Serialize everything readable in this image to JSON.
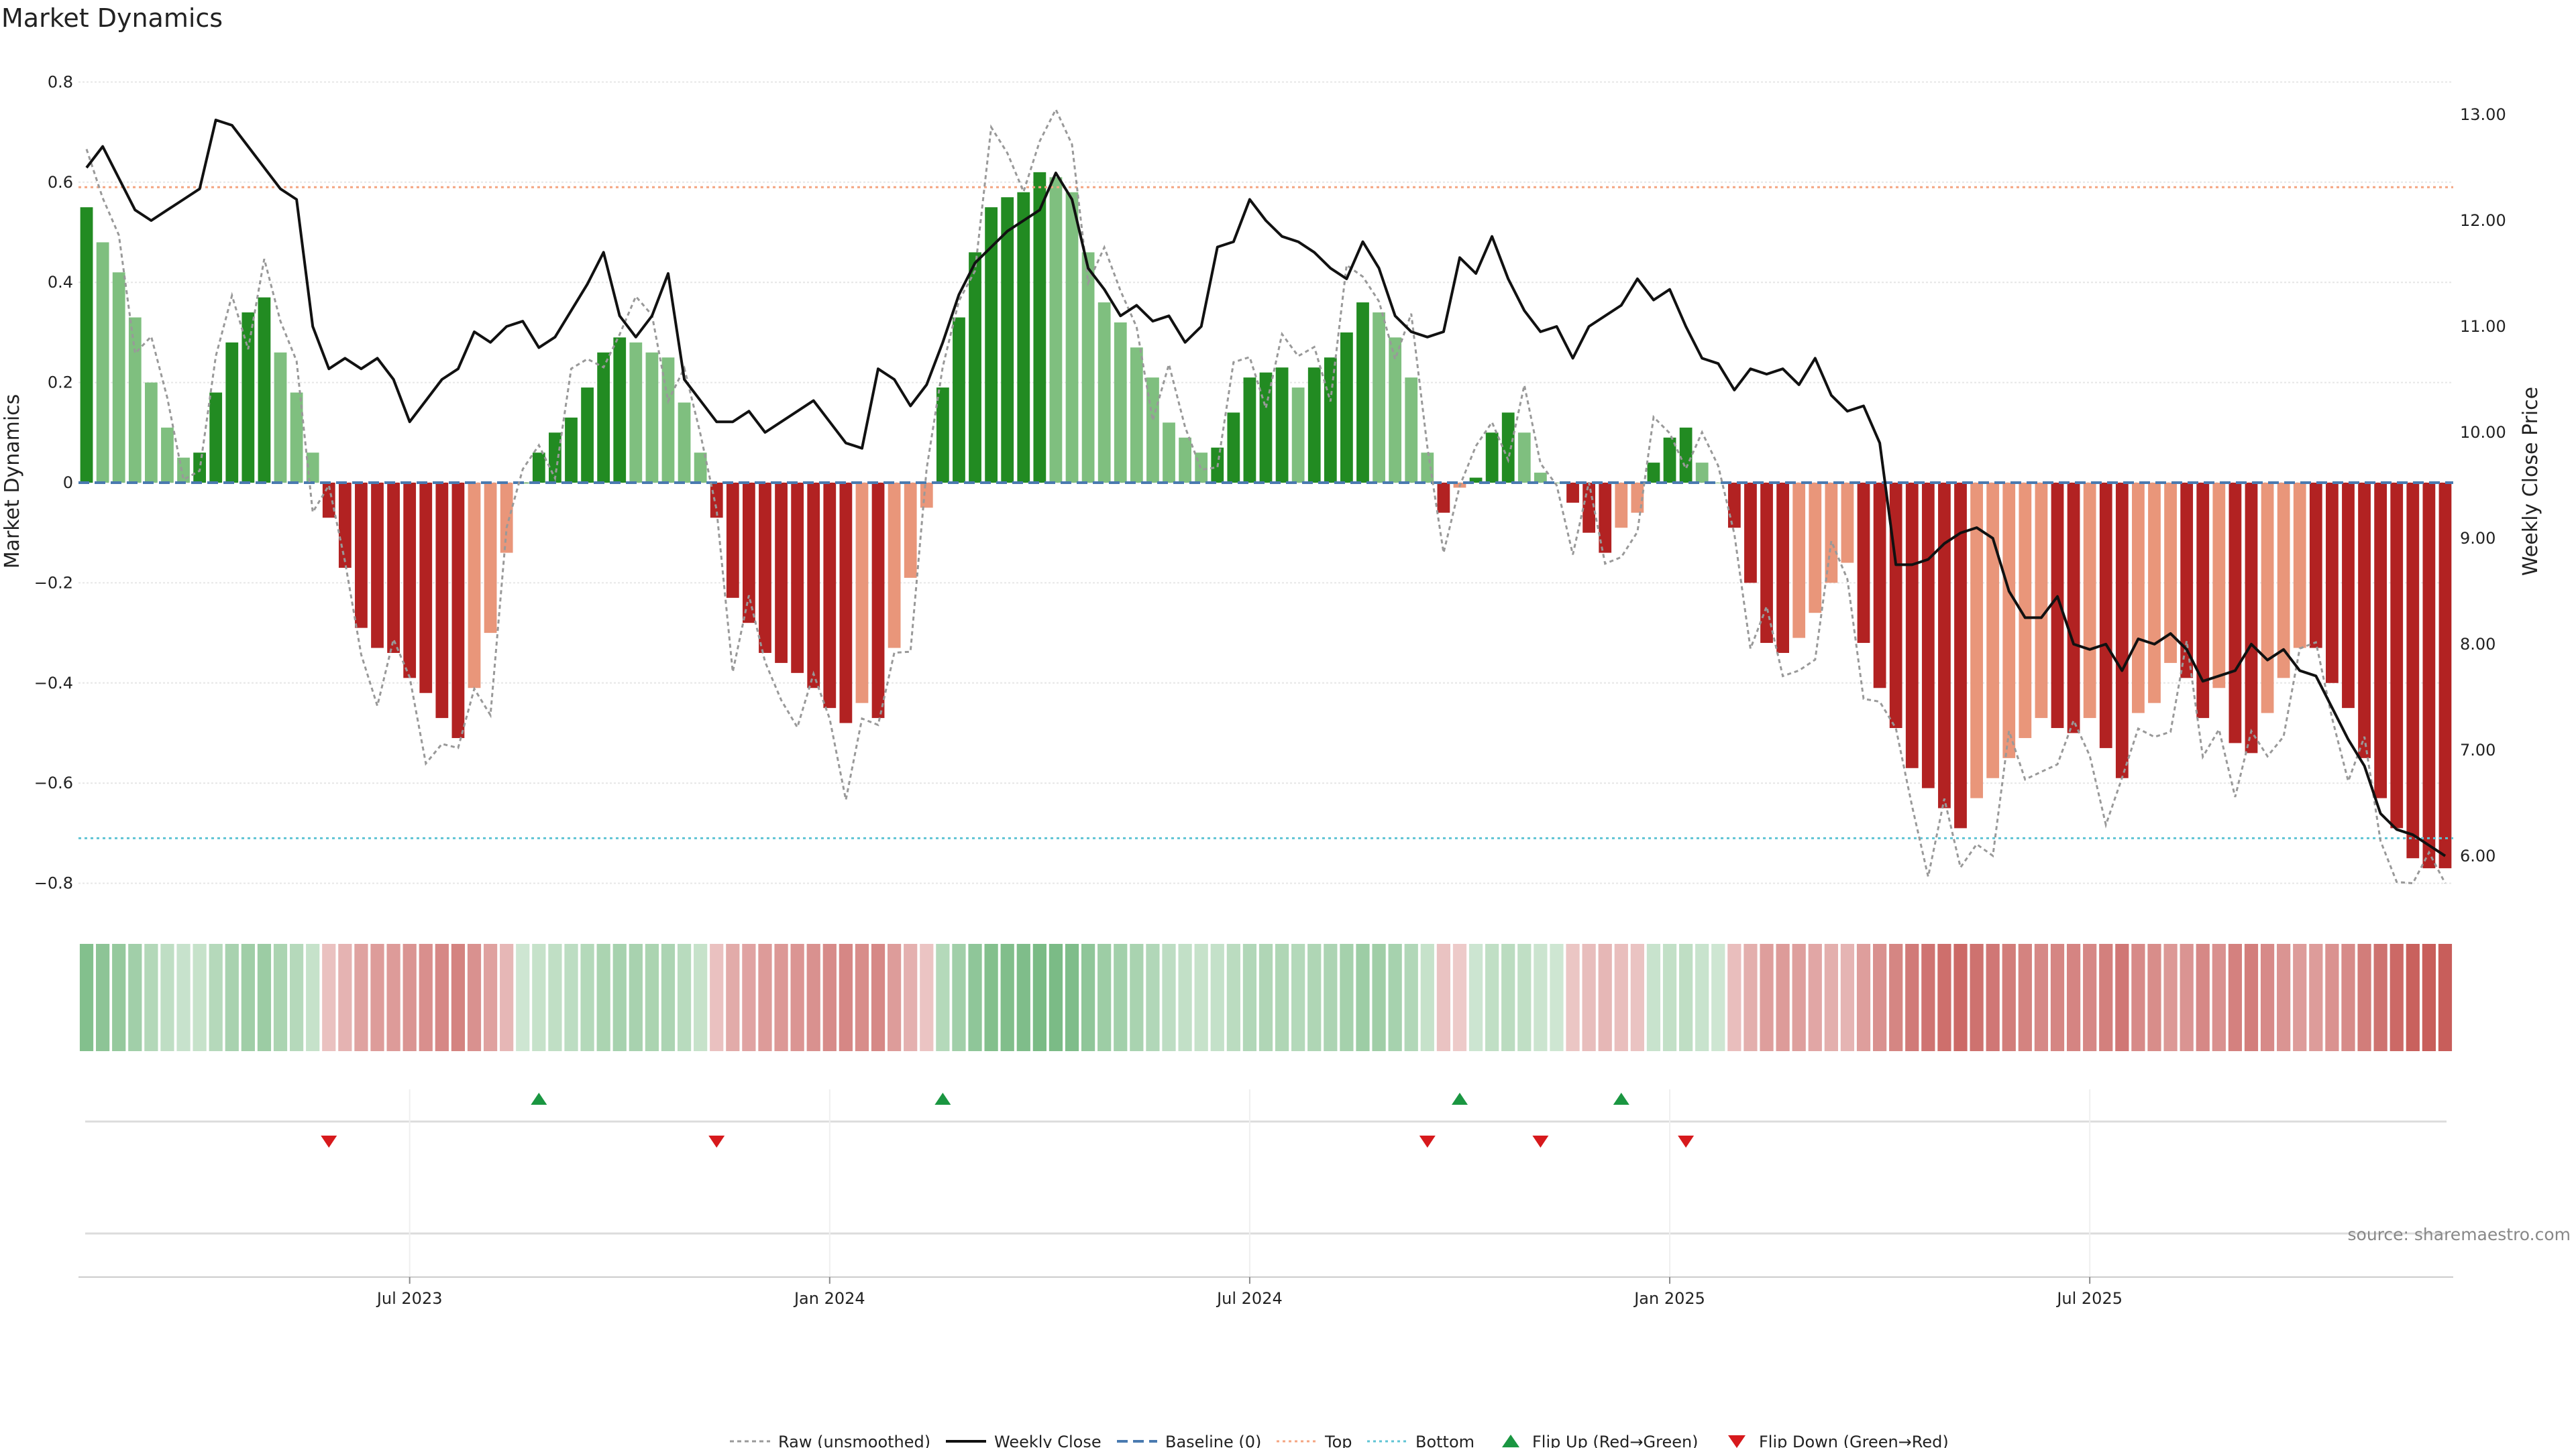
{
  "colors": {
    "strong_green": "#228b22",
    "light_green": "#7fbf7f",
    "strong_red": "#b22222",
    "light_red": "#e9967a",
    "close_line": "#111111",
    "raw_line": "#999999",
    "baseline": "#4a7ab0",
    "top": "#f4a582",
    "bottom": "#5fc4d4",
    "flip_up": "#1a9641",
    "flip_down": "#d7191c",
    "source_text": "#888888"
  },
  "chart_data": {
    "type": "bar",
    "title": "Market Dynamics",
    "ylabel": "Market Dynamics",
    "ylabel_right": "Weekly Close Price",
    "ylim": [
      -0.83,
      0.83
    ],
    "ylim_right": [
      5.6,
      13.45
    ],
    "yticks": [
      {
        "v": 0.8,
        "label": "0.8"
      },
      {
        "v": 0.6,
        "label": "0.6"
      },
      {
        "v": 0.4,
        "label": "0.4"
      },
      {
        "v": 0.2,
        "label": "0.2"
      },
      {
        "v": 0,
        "label": "0"
      },
      {
        "v": -0.2,
        "label": "−0.2"
      },
      {
        "v": -0.4,
        "label": "−0.4"
      },
      {
        "v": -0.6,
        "label": "−0.6"
      },
      {
        "v": -0.8,
        "label": "−0.8"
      }
    ],
    "yticks_right": [
      {
        "v": 13,
        "label": "13.00"
      },
      {
        "v": 12,
        "label": "12.00"
      },
      {
        "v": 11,
        "label": "11.00"
      },
      {
        "v": 10,
        "label": "10.00"
      },
      {
        "v": 9,
        "label": "9.00"
      },
      {
        "v": 8,
        "label": "8.00"
      },
      {
        "v": 7,
        "label": "7.00"
      },
      {
        "v": 6,
        "label": "6.00"
      }
    ],
    "x_ticks": [
      {
        "i": 20,
        "label": "Jul 2023"
      },
      {
        "i": 46,
        "label": "Jan 2024"
      },
      {
        "i": 72,
        "label": "Jul 2024"
      },
      {
        "i": 98,
        "label": "Jan 2025"
      },
      {
        "i": 124,
        "label": "Jul 2025"
      }
    ],
    "top_level": 0.59,
    "bottom_level": -0.71,
    "baseline_level": 0,
    "values": [
      0.55,
      0.48,
      0.42,
      0.33,
      0.2,
      0.11,
      0.05,
      0.06,
      0.18,
      0.28,
      0.34,
      0.37,
      0.26,
      0.18,
      0.06,
      -0.07,
      -0.17,
      -0.29,
      -0.33,
      -0.34,
      -0.39,
      -0.42,
      -0.47,
      -0.51,
      -0.41,
      -0.3,
      -0.14,
      0,
      0.06,
      0.1,
      0.13,
      0.19,
      0.26,
      0.29,
      0.28,
      0.26,
      0.25,
      0.16,
      0.06,
      -0.07,
      -0.23,
      -0.28,
      -0.34,
      -0.36,
      -0.38,
      -0.41,
      -0.45,
      -0.48,
      -0.44,
      -0.47,
      -0.33,
      -0.19,
      -0.05,
      0.19,
      0.33,
      0.46,
      0.55,
      0.57,
      0.58,
      0.62,
      0.61,
      0.58,
      0.46,
      0.36,
      0.32,
      0.27,
      0.21,
      0.12,
      0.09,
      0.06,
      0.07,
      0.14,
      0.21,
      0.22,
      0.23,
      0.19,
      0.23,
      0.25,
      0.3,
      0.36,
      0.34,
      0.29,
      0.21,
      0.06,
      -0.06,
      -0.01,
      0.01,
      0.1,
      0.14,
      0.1,
      0.02,
      0,
      -0.04,
      -0.1,
      -0.14,
      -0.09,
      -0.06,
      0.04,
      0.09,
      0.11,
      0.04,
      0,
      -0.09,
      -0.2,
      -0.32,
      -0.34,
      -0.31,
      -0.26,
      -0.2,
      -0.16,
      -0.32,
      -0.41,
      -0.49,
      -0.57,
      -0.61,
      -0.65,
      -0.69,
      -0.63,
      -0.59,
      -0.55,
      -0.51,
      -0.47,
      -0.49,
      -0.5,
      -0.47,
      -0.53,
      -0.59,
      -0.46,
      -0.44,
      -0.36,
      -0.39,
      -0.47,
      -0.41,
      -0.52,
      -0.54,
      -0.46,
      -0.39,
      -0.33,
      -0.33,
      -0.4,
      -0.45,
      -0.55,
      -0.63,
      -0.69,
      -0.75,
      -0.77,
      -0.77
    ],
    "close": [
      12.5,
      12.7,
      12.4,
      12.1,
      12.0,
      12.1,
      12.2,
      12.3,
      12.95,
      12.9,
      12.7,
      12.5,
      12.3,
      12.2,
      11.0,
      10.6,
      10.7,
      10.6,
      10.7,
      10.5,
      10.1,
      10.3,
      10.5,
      10.6,
      10.95,
      10.85,
      11.0,
      11.05,
      10.8,
      10.9,
      11.15,
      11.4,
      11.7,
      11.1,
      10.9,
      11.1,
      11.5,
      10.5,
      10.3,
      10.1,
      10.1,
      10.2,
      10.0,
      10.1,
      10.2,
      10.3,
      10.1,
      9.9,
      9.85,
      10.6,
      10.5,
      10.25,
      10.45,
      10.85,
      11.3,
      11.6,
      11.75,
      11.9,
      12.0,
      12.1,
      12.45,
      12.2,
      11.55,
      11.35,
      11.1,
      11.2,
      11.05,
      11.1,
      10.85,
      11.0,
      11.75,
      11.8,
      12.2,
      12.0,
      11.85,
      11.8,
      11.7,
      11.55,
      11.45,
      11.8,
      11.55,
      11.1,
      10.95,
      10.9,
      10.95,
      11.65,
      11.5,
      11.85,
      11.45,
      11.15,
      10.95,
      11.0,
      10.7,
      11.0,
      11.1,
      11.2,
      11.45,
      11.25,
      11.35,
      11.0,
      10.7,
      10.65,
      10.4,
      10.6,
      10.55,
      10.6,
      10.45,
      10.7,
      10.35,
      10.2,
      10.25,
      9.9,
      8.75,
      8.75,
      8.8,
      8.95,
      9.05,
      9.1,
      9.0,
      8.5,
      8.25,
      8.25,
      8.45,
      8.0,
      7.95,
      8.0,
      7.75,
      8.05,
      8.0,
      8.1,
      7.95,
      7.65,
      7.7,
      7.75,
      8.0,
      7.85,
      7.95,
      7.75,
      7.7,
      7.4,
      7.1,
      6.85,
      6.4,
      6.25,
      6.2,
      6.1,
      6.0
    ]
  },
  "strip": {
    "label": "momentum-intensity-strip"
  },
  "flips": {
    "up_indices": [
      28,
      53,
      85,
      95
    ],
    "down_indices": [
      15,
      39,
      83,
      90,
      99
    ]
  },
  "legend": {
    "raw": "Raw (unsmoothed)",
    "close": "Weekly Close",
    "baseline": "Baseline (0)",
    "top": "Top",
    "bottom": "Bottom",
    "flip_up": "Flip Up (Red→Green)",
    "flip_down": "Flip Down (Green→Red)"
  },
  "source": "source: sharemaestro.com"
}
